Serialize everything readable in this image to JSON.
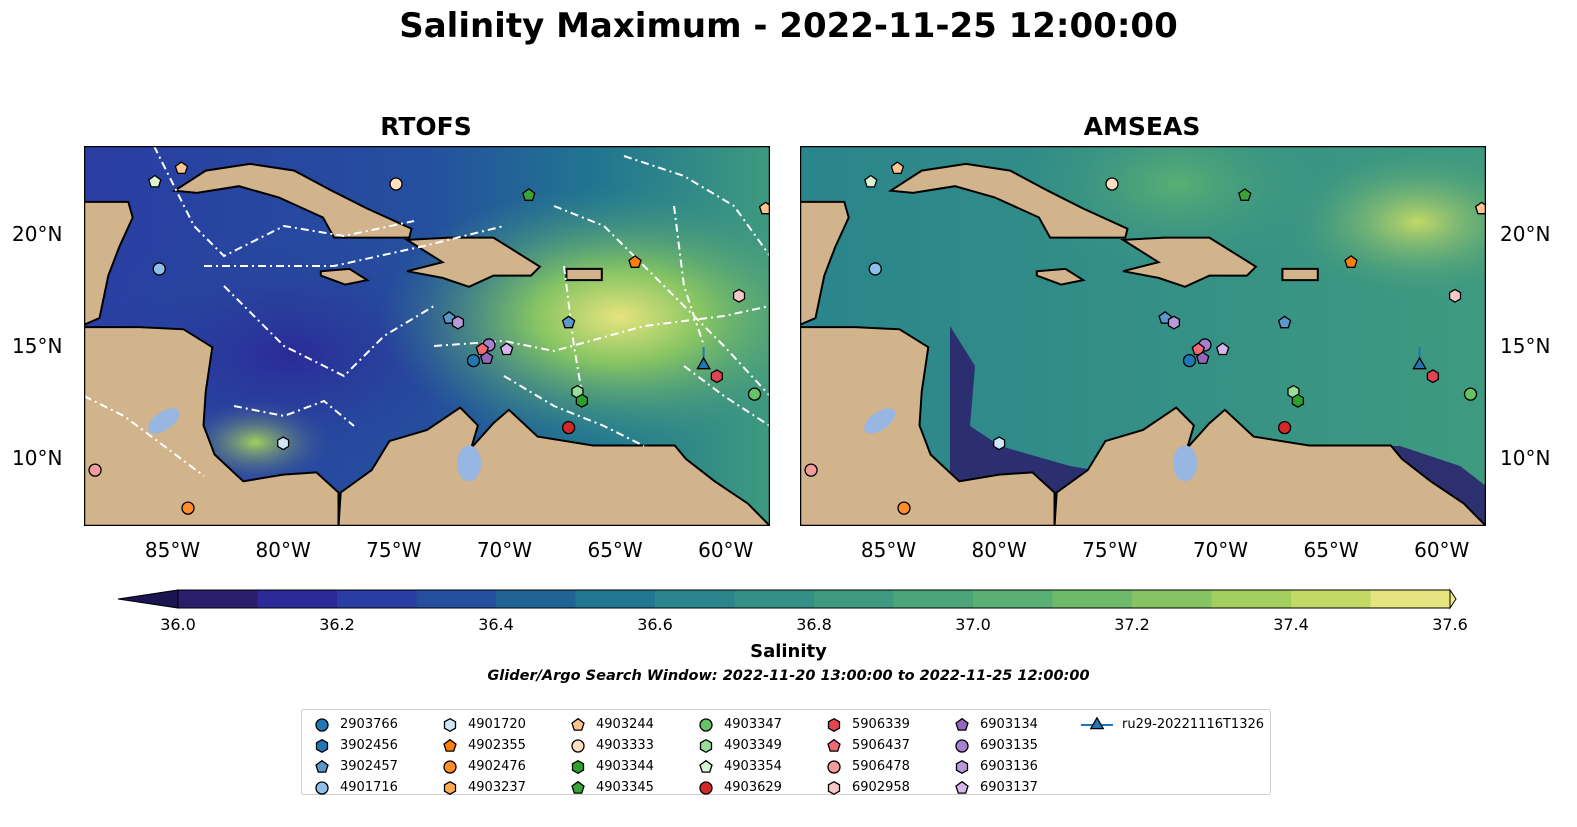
{
  "title": "Salinity Maximum - 2022-11-25 12:00:00",
  "panels": [
    {
      "title": "RTOFS"
    },
    {
      "title": "AMSEAS"
    }
  ],
  "map": {
    "lon_range": [
      -89,
      -58
    ],
    "lat_range": [
      7,
      24
    ],
    "lon_ticks": [
      "85°W",
      "80°W",
      "75°W",
      "70°W",
      "65°W",
      "60°W"
    ],
    "lon_tick_values": [
      -85,
      -80,
      -75,
      -70,
      -65,
      -60
    ],
    "lat_ticks": [
      "20°N",
      "15°N",
      "10°N"
    ],
    "lat_tick_values": [
      20,
      15,
      10
    ],
    "land_color": "#d2b48c",
    "lake_color": "#97b6e1"
  },
  "colorbar": {
    "label": "Salinity",
    "min": 36.0,
    "max": 37.6,
    "ticks": [
      "36.0",
      "36.2",
      "36.4",
      "36.6",
      "36.8",
      "37.0",
      "37.2",
      "37.4",
      "37.6"
    ],
    "colors": [
      "#2a1d6b",
      "#2b2a98",
      "#2a3da3",
      "#254f9e",
      "#1f6494",
      "#217690",
      "#2a858c",
      "#348f86",
      "#3e9a7f",
      "#4ba579",
      "#5aaf72",
      "#6dba6a",
      "#86c463",
      "#a3cf5e",
      "#c3d966",
      "#e6e47e"
    ]
  },
  "search_window": "Glider/Argo Search Window: 2022-11-20 13:00:00 to 2022-11-25 12:00:00",
  "legend": [
    {
      "label": "2903766",
      "color": "#1f77b4",
      "marker": "circle"
    },
    {
      "label": "3902456",
      "color": "#1f77b4",
      "marker": "hexagon"
    },
    {
      "label": "3902457",
      "color": "#5b97cc",
      "marker": "pentagon"
    },
    {
      "label": "4901716",
      "color": "#8fc0ea",
      "marker": "circle"
    },
    {
      "label": "4901720",
      "color": "#cfe6f7",
      "marker": "hexagon"
    },
    {
      "label": "4902355",
      "color": "#ff7f0e",
      "marker": "pentagon"
    },
    {
      "label": "4902476",
      "color": "#ff8c2a",
      "marker": "circle"
    },
    {
      "label": "4903237",
      "color": "#ffaa50",
      "marker": "hexagon"
    },
    {
      "label": "4903244",
      "color": "#ffc490",
      "marker": "pentagon"
    },
    {
      "label": "4903333",
      "color": "#ffdfc0",
      "marker": "circle"
    },
    {
      "label": "4903344",
      "color": "#2ca02c",
      "marker": "hexagon"
    },
    {
      "label": "4903345",
      "color": "#3aa43a",
      "marker": "pentagon"
    },
    {
      "label": "4903347",
      "color": "#66c266",
      "marker": "circle"
    },
    {
      "label": "4903349",
      "color": "#98dd98",
      "marker": "hexagon"
    },
    {
      "label": "4903354",
      "color": "#d6f5d0",
      "marker": "pentagon"
    },
    {
      "label": "4903629",
      "color": "#d62728",
      "marker": "circle"
    },
    {
      "label": "5906339",
      "color": "#e04550",
      "marker": "hexagon"
    },
    {
      "label": "5906437",
      "color": "#ee6b73",
      "marker": "pentagon"
    },
    {
      "label": "5906478",
      "color": "#f49b9b",
      "marker": "circle"
    },
    {
      "label": "6902958",
      "color": "#f8c8c8",
      "marker": "hexagon"
    },
    {
      "label": "6903134",
      "color": "#9467bd",
      "marker": "pentagon"
    },
    {
      "label": "6903135",
      "color": "#a681cf",
      "marker": "circle"
    },
    {
      "label": "6903136",
      "color": "#b999dc",
      "marker": "hexagon"
    },
    {
      "label": "6903137",
      "color": "#d5b7ee",
      "marker": "pentagon"
    },
    {
      "label": "ru29-20221116T1326",
      "color": "#1f77b4",
      "marker": "triangle"
    }
  ],
  "observations": [
    {
      "id": "4903244",
      "lon": -84.6,
      "lat": 23.0
    },
    {
      "id": "4903354",
      "lon": -85.8,
      "lat": 22.4
    },
    {
      "id": "4903333",
      "lon": -74.9,
      "lat": 22.3
    },
    {
      "id": "4903345",
      "lon": -68.9,
      "lat": 21.8
    },
    {
      "id": "4903244",
      "lon": -58.2,
      "lat": 21.2
    },
    {
      "id": "4901716",
      "lon": -85.6,
      "lat": 18.5
    },
    {
      "id": "4902355",
      "lon": -64.1,
      "lat": 18.8
    },
    {
      "id": "6902958",
      "lon": -59.4,
      "lat": 17.3
    },
    {
      "id": "3902457",
      "lon": -72.5,
      "lat": 16.3
    },
    {
      "id": "6903136",
      "lon": -72.1,
      "lat": 16.1
    },
    {
      "id": "3902457",
      "lon": -67.1,
      "lat": 16.1
    },
    {
      "id": "6903135",
      "lon": -70.7,
      "lat": 15.1
    },
    {
      "id": "5906437",
      "lon": -71.0,
      "lat": 14.9
    },
    {
      "id": "6903137",
      "lon": -69.9,
      "lat": 14.9
    },
    {
      "id": "6903134",
      "lon": -70.8,
      "lat": 14.5
    },
    {
      "id": "2903766",
      "lon": -71.4,
      "lat": 14.4
    },
    {
      "id": "ru29-20221116T1326",
      "lon": -61.0,
      "lat": 14.2
    },
    {
      "id": "5906339",
      "lon": -60.4,
      "lat": 13.7
    },
    {
      "id": "4903349",
      "lon": -66.7,
      "lat": 13.0
    },
    {
      "id": "4903347",
      "lon": -58.7,
      "lat": 12.9
    },
    {
      "id": "4903344",
      "lon": -66.5,
      "lat": 12.6
    },
    {
      "id": "4903629",
      "lon": -67.1,
      "lat": 11.4
    },
    {
      "id": "4901720",
      "lon": -80.0,
      "lat": 10.7
    },
    {
      "id": "5906478",
      "lon": -88.5,
      "lat": 9.5
    },
    {
      "id": "4902476",
      "lon": -84.3,
      "lat": 7.8
    }
  ]
}
